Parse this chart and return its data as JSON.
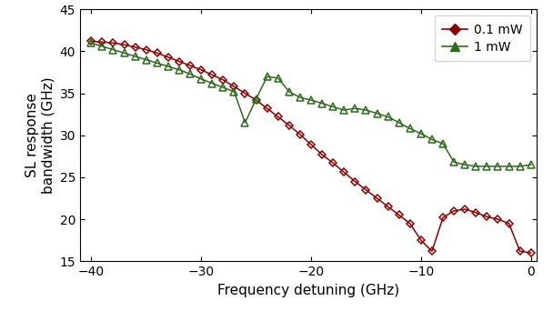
{
  "xlabel": "Frequency detuning (GHz)",
  "ylabel": "SL response\nbandwidth (GHz)",
  "xlim": [
    -41,
    0.5
  ],
  "ylim": [
    15,
    45
  ],
  "xticks": [
    -40,
    -30,
    -20,
    -10,
    0
  ],
  "yticks": [
    15,
    20,
    25,
    30,
    35,
    40,
    45
  ],
  "color_01mW": "#8B0000",
  "color_1mW": "#2E6B1E",
  "x_01mW": [
    -40,
    -39,
    -38,
    -37,
    -36,
    -35,
    -34,
    -33,
    -32,
    -31,
    -30,
    -29,
    -28,
    -27,
    -26,
    -25,
    -24,
    -23,
    -22,
    -21,
    -20,
    -19,
    -18,
    -17,
    -16,
    -15,
    -14,
    -13,
    -12,
    -11,
    -10,
    -9,
    -8,
    -7,
    -6,
    -5,
    -4,
    -3,
    -2,
    -1,
    0
  ],
  "y_01mW": [
    41.2,
    41.1,
    41.0,
    40.8,
    40.5,
    40.2,
    39.8,
    39.3,
    38.8,
    38.3,
    37.8,
    37.2,
    36.6,
    35.8,
    35.0,
    34.2,
    33.2,
    32.2,
    31.2,
    30.1,
    28.9,
    27.7,
    26.7,
    25.6,
    24.5,
    23.5,
    22.5,
    21.5,
    20.5,
    19.5,
    17.5,
    16.2,
    20.2,
    21.0,
    21.2,
    20.8,
    20.3,
    20.0,
    19.5,
    16.2,
    16.0
  ],
  "x_1mW": [
    -40,
    -39,
    -38,
    -37,
    -36,
    -35,
    -34,
    -33,
    -32,
    -31,
    -30,
    -29,
    -28,
    -27,
    -26,
    -25,
    -24,
    -23,
    -22,
    -21,
    -20,
    -19,
    -18,
    -17,
    -16,
    -15,
    -14,
    -13,
    -12,
    -11,
    -10,
    -9,
    -8,
    -7,
    -6,
    -5,
    -4,
    -3,
    -2,
    -1,
    0
  ],
  "y_1mW": [
    41.0,
    40.6,
    40.2,
    39.8,
    39.4,
    39.0,
    38.6,
    38.2,
    37.8,
    37.3,
    36.7,
    36.2,
    35.7,
    35.2,
    31.5,
    34.3,
    37.0,
    36.8,
    35.2,
    34.5,
    34.2,
    33.8,
    33.4,
    33.0,
    33.2,
    33.0,
    32.6,
    32.2,
    31.5,
    30.8,
    30.2,
    29.5,
    29.0,
    26.8,
    26.5,
    26.3,
    26.3,
    26.3,
    26.3,
    26.3,
    26.5
  ],
  "legend_01mW": "0.1 mW",
  "legend_1mW": "1 mW",
  "figsize": [
    6.08,
    3.42
  ],
  "dpi": 100
}
